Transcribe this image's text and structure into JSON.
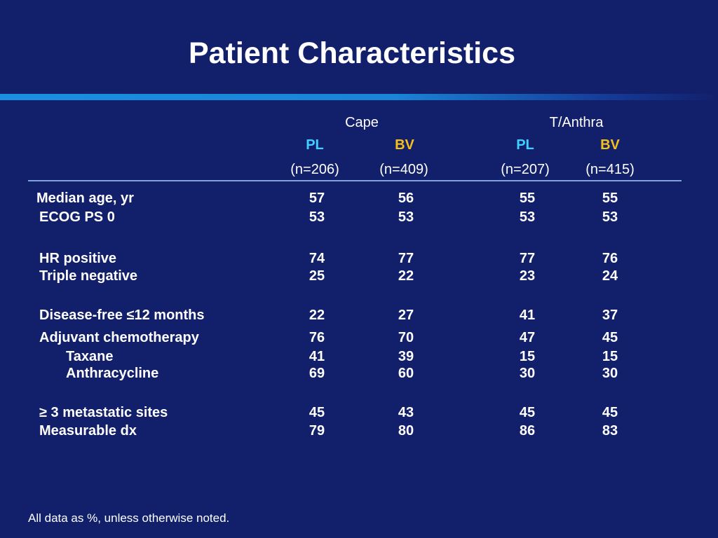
{
  "title": "Patient Characteristics",
  "groups": [
    {
      "name": "Cape",
      "arms": [
        {
          "label": "PL",
          "n": "(n=206)"
        },
        {
          "label": "BV",
          "n": "(n=409)"
        }
      ]
    },
    {
      "name": "T/Anthra",
      "arms": [
        {
          "label": "PL",
          "n": "(n=207)"
        },
        {
          "label": "BV",
          "n": "(n=415)"
        }
      ]
    }
  ],
  "rows": [
    {
      "label": "Median age, yr",
      "values": [
        "57",
        "56",
        "55",
        "55"
      ]
    },
    {
      "label": "ECOG PS 0",
      "values": [
        "53",
        "53",
        "53",
        "53"
      ]
    },
    {
      "label": "HR positive",
      "values": [
        "74",
        "77",
        "77",
        "76"
      ]
    },
    {
      "label": "Triple negative",
      "values": [
        "25",
        "22",
        "23",
        "24"
      ]
    },
    {
      "label": "Disease-free ≤12 months",
      "values": [
        "22",
        "27",
        "41",
        "37"
      ]
    },
    {
      "label": "Adjuvant chemotherapy",
      "values": [
        "76",
        "70",
        "47",
        "45"
      ]
    },
    {
      "label": "Taxane",
      "values": [
        "41",
        "39",
        "15",
        "15"
      ]
    },
    {
      "label": "Anthracycline",
      "values": [
        "69",
        "60",
        "30",
        "30"
      ]
    },
    {
      "label": "≥ 3 metastatic sites",
      "values": [
        "45",
        "43",
        "45",
        "45"
      ]
    },
    {
      "label": "Measurable dx",
      "values": [
        "79",
        "80",
        "86",
        "83"
      ]
    }
  ],
  "footnote": "All data as %, unless otherwise noted."
}
